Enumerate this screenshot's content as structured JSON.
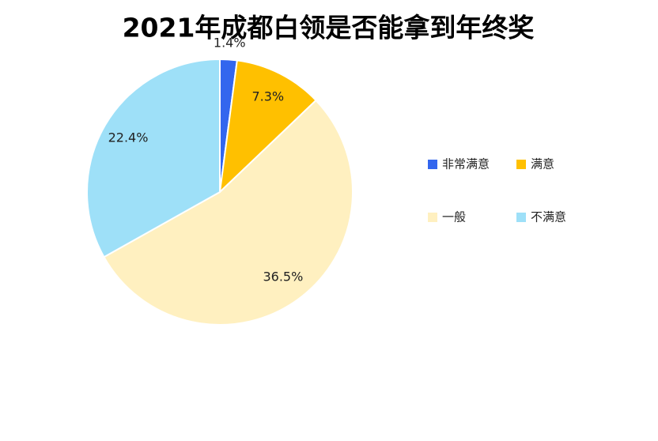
{
  "chart_data": {
    "type": "pie",
    "title": "2021年成都白领是否能拿到年终奖",
    "categories": [
      "非常满意",
      "满意",
      "一般",
      "不满意"
    ],
    "values": [
      1.4,
      7.3,
      36.5,
      22.4
    ],
    "value_labels": [
      "1.4%",
      "7.3%",
      "36.5%",
      "22.4%"
    ],
    "colors": [
      "#3366ee",
      "#ffc000",
      "#fff0c0",
      "#9ee0f8"
    ],
    "legend": "right"
  }
}
